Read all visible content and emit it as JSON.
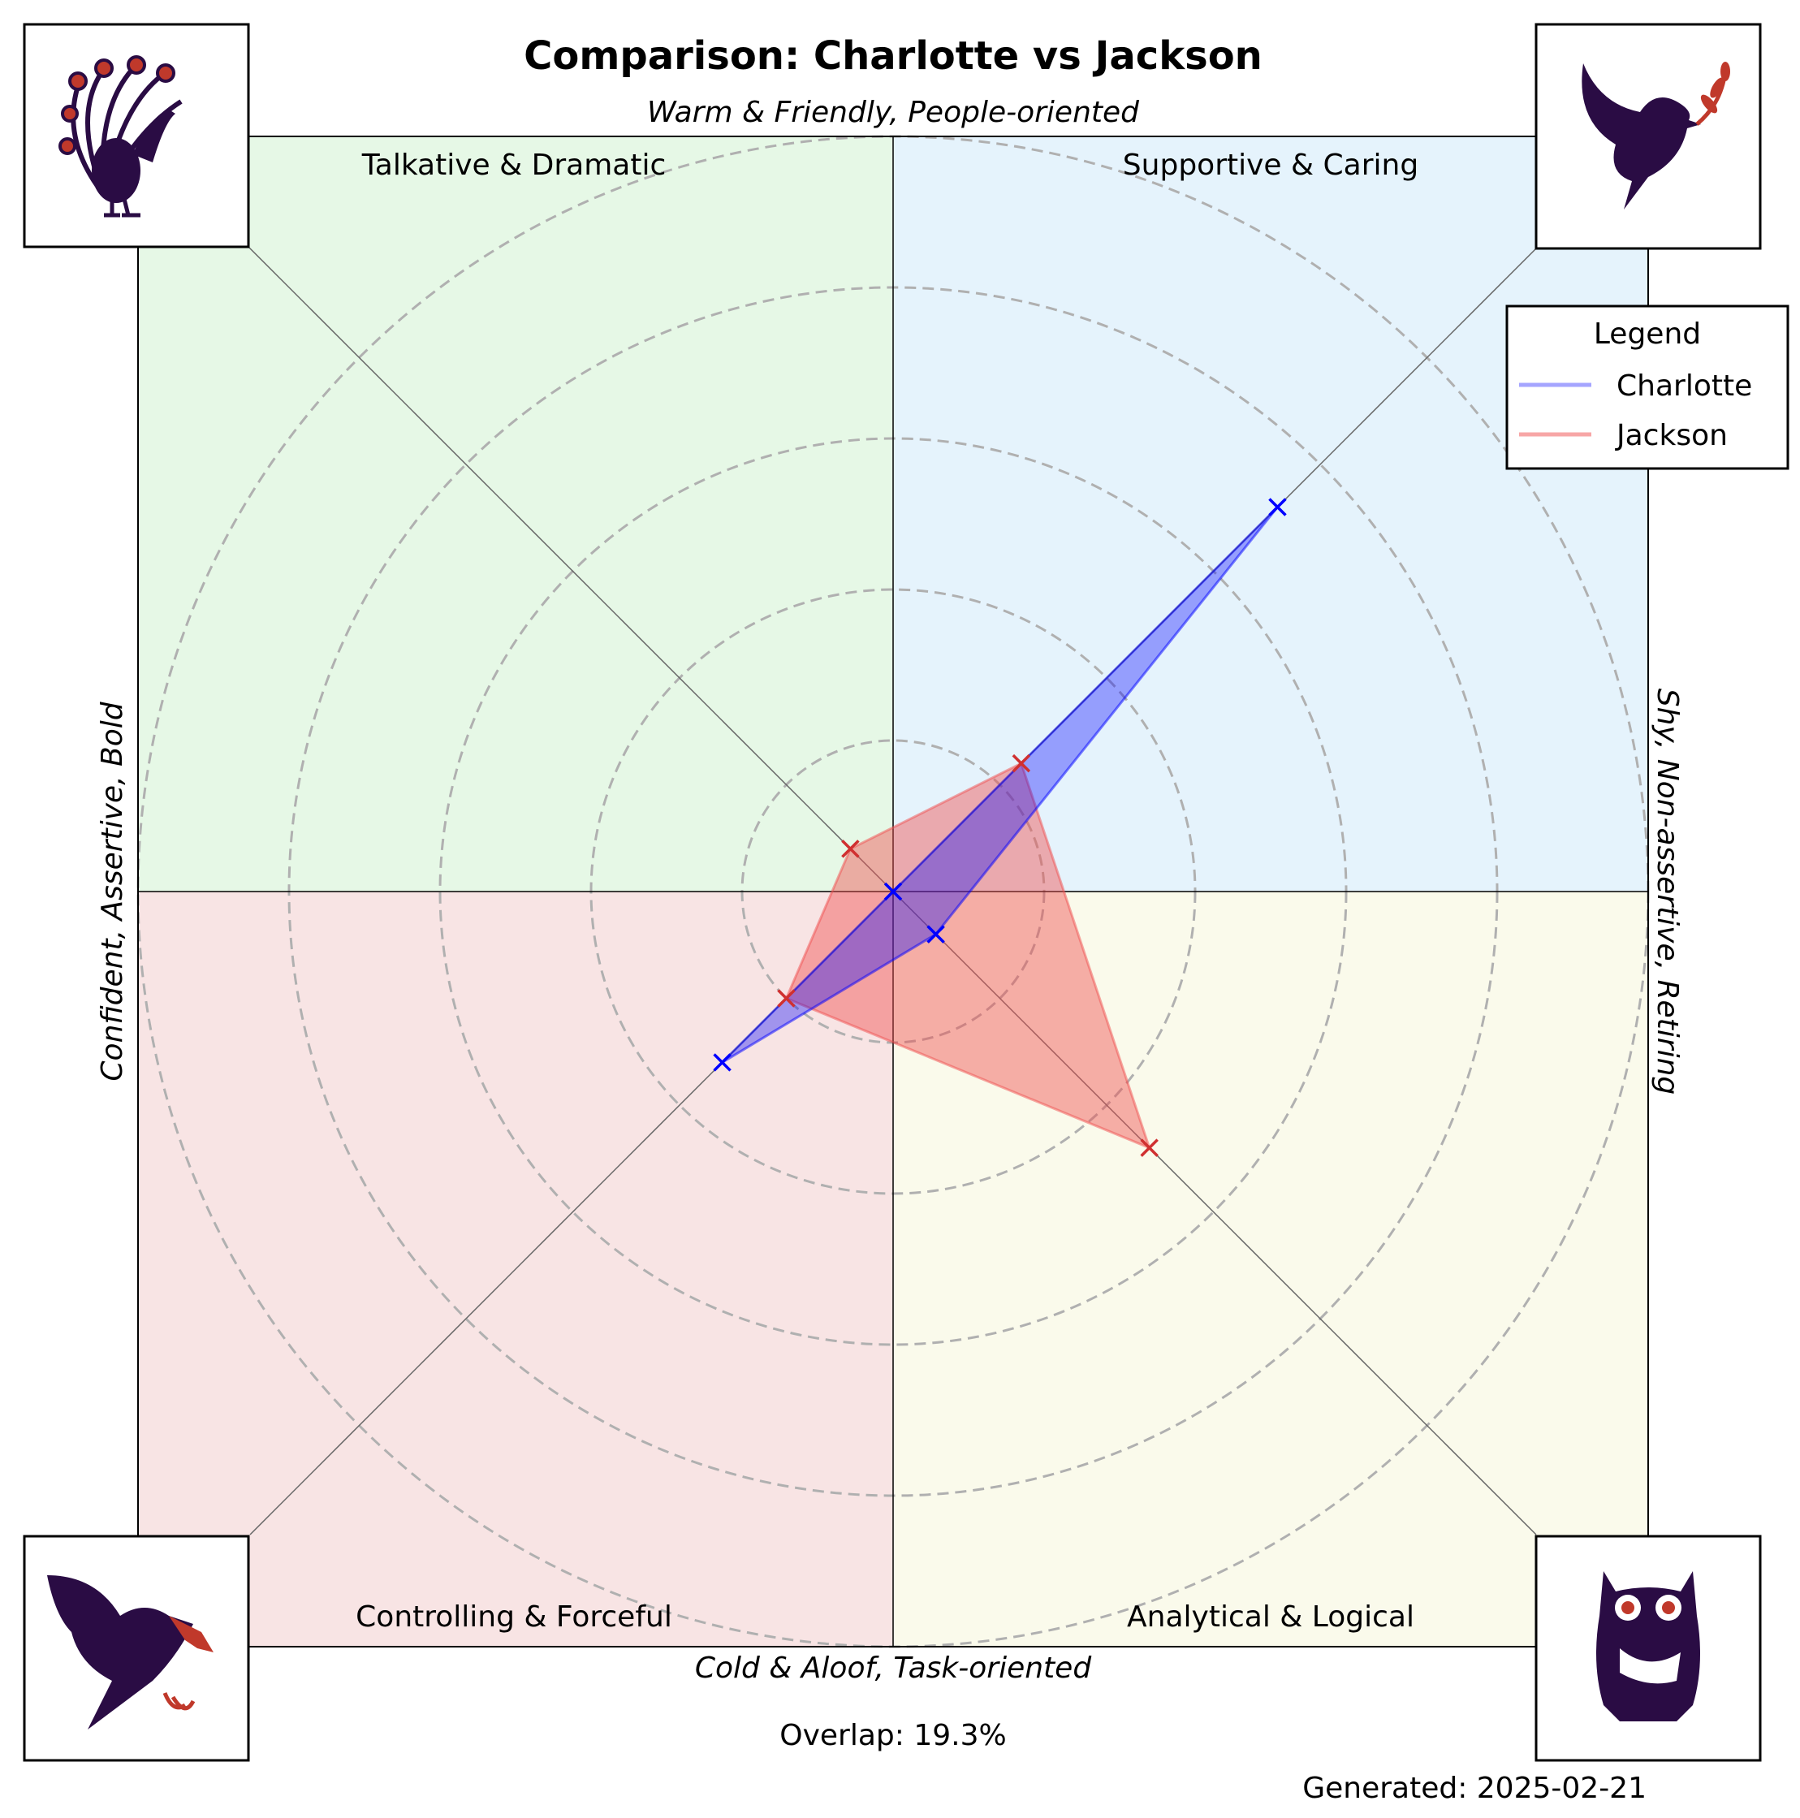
{
  "chart_data": {
    "type": "radar",
    "title": "Comparison: Charlotte vs Jackson",
    "axes": {
      "top": "Warm & Friendly, People-oriented",
      "bottom": "Cold & Aloof, Task-oriented",
      "left": "Confident, Assertive, Bold",
      "right": "Shy, Non-assertive, Retiring"
    },
    "quadrants": {
      "top_left": "Talkative & Dramatic",
      "top_right": "Supportive & Caring",
      "bottom_left": "Controlling & Forceful",
      "bottom_right": "Analytical & Logical"
    },
    "directions": [
      "Talkative & Dramatic",
      "Supportive & Caring",
      "Analytical & Logical",
      "Controlling & Forceful"
    ],
    "rlim": [
      0,
      5
    ],
    "rings": [
      1,
      2,
      3,
      4,
      5
    ],
    "series": [
      {
        "name": "Charlotte",
        "color": "#0000ff",
        "values": [
          0.0,
          3.6,
          0.4,
          1.6
        ]
      },
      {
        "name": "Jackson",
        "color": "#f05050",
        "values": [
          0.4,
          1.2,
          2.4,
          1.0
        ]
      }
    ],
    "legend": {
      "title": "Legend",
      "placement": "top-right"
    },
    "quadrant_colors": {
      "top_left": "#e6f8e6",
      "top_right": "#e5f3fc",
      "bottom_left": "#f8e4e4",
      "bottom_right": "#fafaeb"
    },
    "icons": {
      "top_left": "peacock-icon",
      "top_right": "dove-icon",
      "bottom_left": "eagle-icon",
      "bottom_right": "owl-icon"
    },
    "overlap_text": "Overlap: 19.3%",
    "generated_text": "Generated: 2025-02-21"
  }
}
